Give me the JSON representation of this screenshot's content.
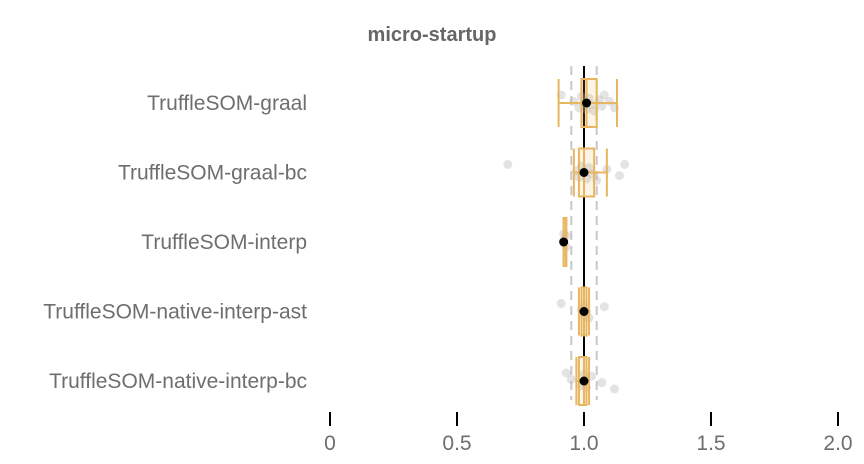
{
  "chart_data": {
    "type": "boxplot",
    "title": "micro-startup",
    "xlabel": "",
    "ylabel": "",
    "xlim": [
      0,
      2.0
    ],
    "x_ticks": [
      {
        "value": 0,
        "label": "0"
      },
      {
        "value": 0.5,
        "label": "0.5"
      },
      {
        "value": 1.0,
        "label": "1.0"
      },
      {
        "value": 1.5,
        "label": "1.5"
      },
      {
        "value": 2.0,
        "label": "2.0"
      }
    ],
    "reference_line": 1.0,
    "dashed_reference_lines": [
      0.95,
      1.05
    ],
    "categories": [
      "TruffleSOM-graal",
      "TruffleSOM-graal-bc",
      "TruffleSOM-interp",
      "TruffleSOM-native-interp-ast",
      "TruffleSOM-native-interp-bc"
    ],
    "series": [
      {
        "category": "TruffleSOM-graal",
        "whisker_low": 0.9,
        "q1": 0.99,
        "median": 1.01,
        "q3": 1.05,
        "whisker_high": 1.13,
        "mean": 1.01,
        "points": [
          0.91,
          0.96,
          0.98,
          0.99,
          1.0,
          1.01,
          1.02,
          1.03,
          1.04,
          1.06,
          1.07,
          1.08,
          1.1,
          1.12
        ]
      },
      {
        "category": "TruffleSOM-graal-bc",
        "whisker_low": 0.96,
        "q1": 0.98,
        "median": 1.0,
        "q3": 1.04,
        "whisker_high": 1.09,
        "mean": 1.0,
        "points": [
          0.7,
          0.97,
          0.98,
          0.99,
          1.0,
          1.01,
          1.02,
          1.03,
          1.05,
          1.09,
          1.14,
          1.16
        ]
      },
      {
        "category": "TruffleSOM-interp",
        "whisker_low": 0.92,
        "q1": 0.92,
        "median": 0.93,
        "q3": 0.93,
        "whisker_high": 0.93,
        "mean": 0.92,
        "points": [
          0.92,
          0.92,
          0.93,
          0.93
        ]
      },
      {
        "category": "TruffleSOM-native-interp-ast",
        "whisker_low": 0.98,
        "q1": 0.99,
        "median": 1.0,
        "q3": 1.01,
        "whisker_high": 1.02,
        "mean": 1.0,
        "points": [
          0.91,
          0.99,
          1.0,
          1.0,
          1.01,
          1.02,
          1.08
        ]
      },
      {
        "category": "TruffleSOM-native-interp-bc",
        "whisker_low": 0.97,
        "q1": 0.98,
        "median": 1.0,
        "q3": 1.01,
        "whisker_high": 1.02,
        "mean": 1.0,
        "points": [
          0.93,
          0.95,
          0.99,
          1.0,
          1.0,
          1.01,
          1.03,
          1.07,
          1.12
        ]
      }
    ],
    "grid": false,
    "legend": "none",
    "colors": {
      "box": "#e8b560",
      "mean_dot": "#000000",
      "reference_line": "#000000",
      "dashed_line": "#c8c8c8",
      "points": "#b0b0b0",
      "text": "#6e6e6e",
      "axis": "#000000"
    }
  }
}
